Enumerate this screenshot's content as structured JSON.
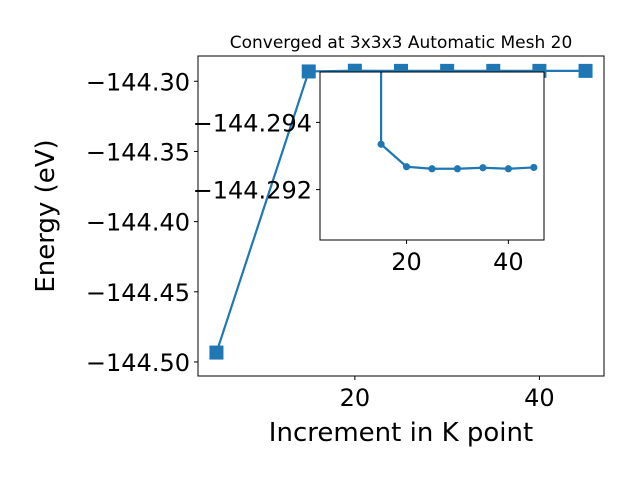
{
  "chart_data": [
    {
      "type": "line",
      "title": "Converged at 3x3x3 Automatic Mesh 20",
      "xlabel": "Increment in K point",
      "ylabel": "Energy (eV)",
      "xlim": [
        3,
        47
      ],
      "ylim": [
        -144.51,
        -144.282
      ],
      "x_ticks": [
        20,
        40
      ],
      "x_tick_labels": [
        "20",
        "40"
      ],
      "y_ticks": [
        -144.3,
        -144.35,
        -144.4,
        -144.45,
        -144.5
      ],
      "y_tick_labels": [
        "−144.30",
        "−144.35",
        "−144.40",
        "−144.45",
        "−144.50"
      ],
      "marker": "square",
      "color": "#1f77b4",
      "grid": false,
      "legend": "none",
      "series": [
        {
          "x": [
            5,
            15,
            20,
            25,
            30,
            35,
            40,
            45
          ],
          "y": [
            -144.4933,
            -144.293,
            -144.2925,
            -144.2926,
            -144.2926,
            -144.2926,
            -144.2926,
            -144.2926
          ]
        }
      ]
    },
    {
      "type": "line",
      "title": "",
      "xlabel": "",
      "ylabel": "",
      "xlim": [
        3,
        47
      ],
      "ylim": [
        -144.2905,
        -144.2955
      ],
      "y_inverted": true,
      "x_ticks": [
        20,
        40
      ],
      "x_tick_labels": [
        "20",
        "40"
      ],
      "y_ticks": [
        -144.294,
        -144.292
      ],
      "y_tick_labels": [
        "−144.294",
        "−144.292"
      ],
      "marker": "circle",
      "color": "#1f77b4",
      "grid": false,
      "legend": "none",
      "series": [
        {
          "x": [
            15,
            20,
            25,
            30,
            35,
            40,
            45
          ],
          "y": [
            -144.29335,
            -144.29268,
            -144.29262,
            -144.29262,
            -144.29265,
            -144.29262,
            -144.29266
          ]
        }
      ]
    }
  ]
}
